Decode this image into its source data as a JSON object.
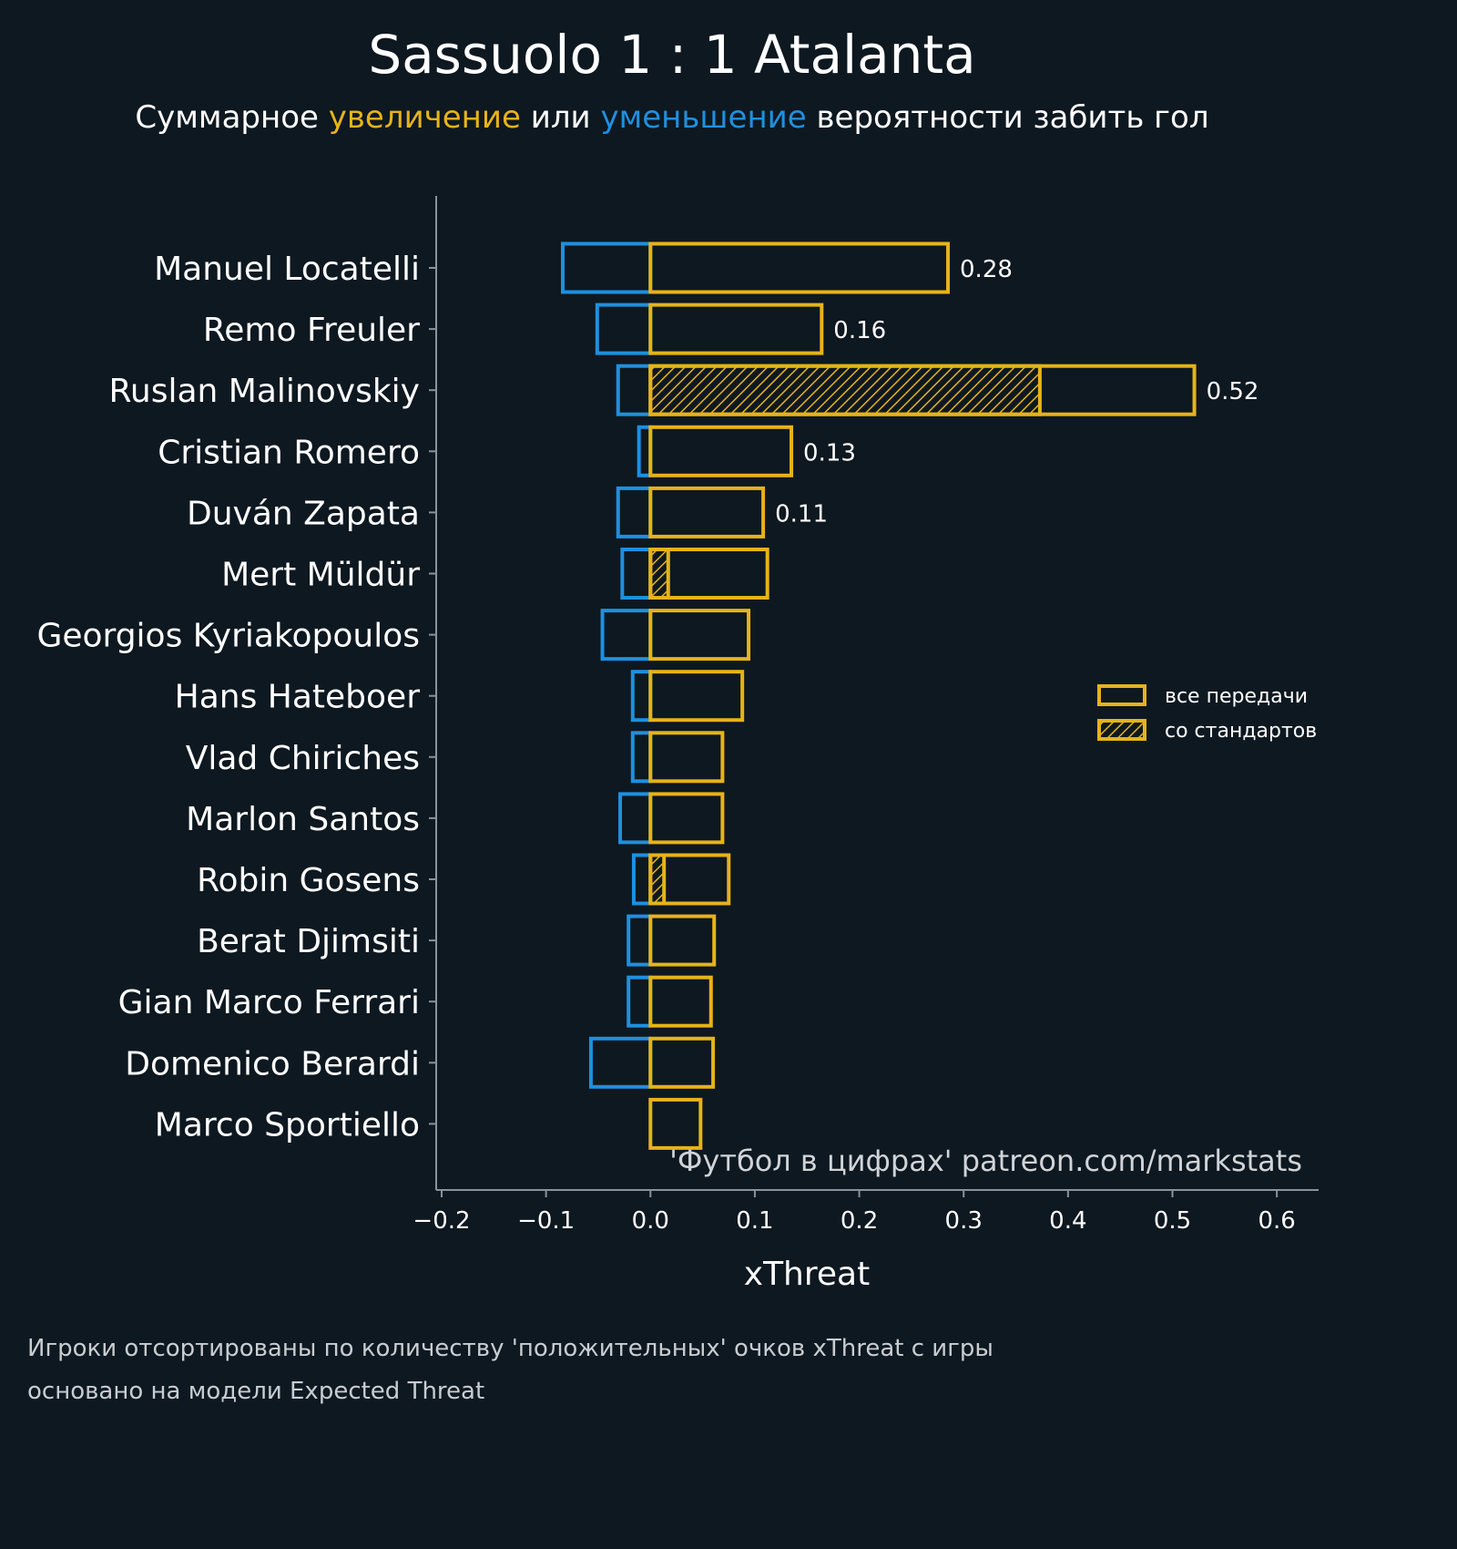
{
  "title": "Sassuolo 1 : 1 Atalanta",
  "subtitle": {
    "pre": "Суммарное ",
    "up": "увеличение",
    "mid": " или ",
    "down": "уменьшение",
    "post": " вероятности забить гол"
  },
  "colors": {
    "background": "#0e1820",
    "positive": "#e6b319",
    "negative": "#1e90e0",
    "axis": "#8a9399",
    "text": "#ffffff"
  },
  "chart_data": {
    "type": "bar",
    "orientation": "horizontal",
    "xlabel": "xThreat",
    "xlim": [
      -0.2,
      0.64
    ],
    "xticks": [
      -0.2,
      -0.1,
      0.0,
      0.1,
      0.2,
      0.3,
      0.4,
      0.5,
      0.6
    ],
    "xtick_labels": [
      "−0.2",
      "−0.1",
      "0.0",
      "0.1",
      "0.2",
      "0.3",
      "0.4",
      "0.5",
      "0.6"
    ],
    "categories": [
      "Manuel Locatelli",
      "Remo Freuler",
      "Ruslan Malinovskiy",
      "Cristian Romero",
      "Duván Zapata",
      "Mert Müldür",
      "Georgios Kyriakopoulos",
      "Hans Hateboer",
      "Vlad Chiriches",
      "Marlon Santos",
      "Robin Gosens",
      "Berat Djimsiti",
      "Gian Marco Ferrari",
      "Domenico Berardi",
      "Marco Sportiello"
    ],
    "series": [
      {
        "name": "negative",
        "values": [
          -0.084,
          -0.051,
          -0.031,
          -0.011,
          -0.031,
          -0.027,
          -0.046,
          -0.017,
          -0.017,
          -0.029,
          -0.016,
          -0.021,
          -0.021,
          -0.057,
          0.0
        ]
      },
      {
        "name": "все передачи",
        "values": [
          0.285,
          0.164,
          0.521,
          0.135,
          0.108,
          0.112,
          0.094,
          0.088,
          0.069,
          0.069,
          0.075,
          0.061,
          0.058,
          0.06,
          0.048
        ]
      },
      {
        "name": "со стандартов",
        "values": [
          0.0,
          0.0,
          0.373,
          0.0,
          0.0,
          0.017,
          0.0,
          0.0,
          0.0,
          0.0,
          0.013,
          0.0,
          0.0,
          0.0,
          0.0
        ]
      }
    ],
    "value_labels": [
      "0.28",
      "0.16",
      "0.52",
      "0.13",
      "0.11",
      "",
      "",
      "",
      "",
      "",
      "",
      "",
      "",
      "",
      ""
    ],
    "legend": {
      "entries": [
        "все передачи",
        "со стандартов"
      ],
      "position": "right"
    }
  },
  "watermark": "'Футбол в цифрах' patreon.com/markstats",
  "footnotes": [
    "Игроки отсортированы по количеству 'положительных' очков xThreat с игры",
    "основано на модели Expected Threat"
  ]
}
